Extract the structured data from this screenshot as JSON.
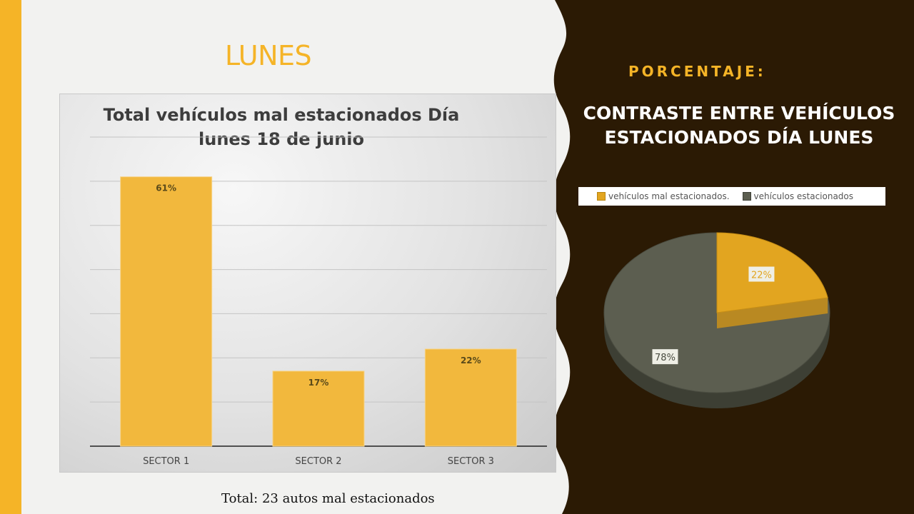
{
  "slide": {
    "title": "LUNES",
    "total_text": "Total: 23 autos mal estacionados",
    "right_label": "PORCENTAJE:",
    "right_title": "CONTRASTE ENTRE VEHÍCULOS ESTACIONADOS DÍA LUNES"
  },
  "colors": {
    "accent": "#f5b427",
    "dark_panel": "#2b1a04",
    "bar": "#f2b83d",
    "pie_grey": "#5c5e50",
    "pie_gold": "#e2a520"
  },
  "chart_data": [
    {
      "type": "bar",
      "title": "Total vehículos mal estacionados Día lunes 18 de junio",
      "categories": [
        "SECTOR 1",
        "SECTOR 2",
        "SECTOR 3"
      ],
      "values": [
        61,
        17,
        22
      ],
      "data_labels": [
        "61%",
        "17%",
        "22%"
      ],
      "ylim": [
        0,
        70
      ],
      "grid": true
    },
    {
      "type": "pie",
      "title": "CONTRASTE ENTRE VEHÍCULOS ESTACIONADOS DÍA LUNES",
      "categories": [
        "vehículos mal estacionados.",
        "vehículos estacionados"
      ],
      "values": [
        22,
        78
      ],
      "data_labels": [
        "22%",
        "78%"
      ],
      "legend": "top"
    }
  ]
}
